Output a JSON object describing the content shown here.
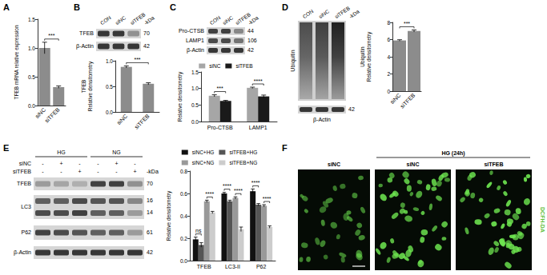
{
  "chart_data": [
    {
      "panel": "A",
      "type": "bar",
      "ylabel": "TFEB mRNA relative expression",
      "categories": [
        "siNC",
        "siTFEB"
      ],
      "values": [
        1.0,
        0.32
      ],
      "errors": [
        0.1,
        0.02
      ],
      "color": "#8c8c8c",
      "ylim": [
        0,
        1.5
      ],
      "yticks": [
        {
          "value": 0,
          "label": "0.0"
        },
        {
          "value": 0.5,
          "label": "0.5"
        },
        {
          "value": 1,
          "label": "1.0"
        },
        {
          "value": 1.5,
          "label": "1.5"
        }
      ],
      "grid": false,
      "annotations": [
        {
          "bars": [
            0,
            1
          ],
          "text": "***"
        }
      ]
    },
    {
      "type": "bar",
      "ylabel": "TFEB\nRelative densitometry",
      "categories": [
        "siNC",
        "siTFEB"
      ],
      "values": [
        0.88,
        0.55
      ],
      "errors": [
        0.02,
        0.02
      ],
      "color": "#8c8c8c",
      "ylim": [
        0,
        1
      ],
      "yticks": [
        {
          "value": 0,
          "label": "0.0"
        },
        {
          "value": 0.5,
          "label": "0.5"
        },
        {
          "value": 1,
          "label": "1.0"
        }
      ],
      "grid": false,
      "annotations": [
        {
          "bars": [
            0,
            1
          ],
          "text": "***"
        }
      ]
    },
    {
      "type": "bar",
      "ylabel": "Relative densitometry",
      "categories": [
        "Pro-CTSB",
        "LAMP1"
      ],
      "series": [
        {
          "name": "siNC",
          "color": "#a6a6a6",
          "values": [
            0.78,
            1.02
          ],
          "errors": [
            0.03,
            0.02
          ]
        },
        {
          "name": "siTFEB",
          "color": "#1a1a1a",
          "values": [
            0.62,
            0.76
          ],
          "errors": [
            0.02,
            0.04
          ]
        }
      ],
      "ylim": [
        0,
        1.5
      ],
      "yticks": [
        {
          "value": 0,
          "label": "0.0"
        },
        {
          "value": 0.5,
          "label": "0.5"
        },
        {
          "value": 1,
          "label": "1.0"
        },
        {
          "value": 1.5,
          "label": "1.5"
        }
      ],
      "grid": false,
      "legend": "top",
      "annotations": [
        {
          "category": "Pro-CTSB",
          "series": [
            0,
            1
          ],
          "text": "***"
        },
        {
          "category": "LAMP1",
          "series": [
            0,
            1
          ],
          "text": "****"
        }
      ]
    },
    {
      "type": "bar",
      "ylabel": "Ubiquitin\nRelative densitometry",
      "categories": [
        "siNC",
        "siTFEB"
      ],
      "values": [
        5.9,
        7.0
      ],
      "errors": [
        0.08,
        0.12
      ],
      "color": "#8c8c8c",
      "ylim": [
        0,
        8
      ],
      "yticks": [
        0,
        2,
        4,
        6,
        8
      ],
      "grid": false,
      "annotations": [
        {
          "bars": [
            0,
            1
          ],
          "text": "***"
        }
      ]
    },
    {
      "type": "bar",
      "ylabel": "Relative densitometry",
      "categories": [
        "TFEB",
        "LC3-II",
        "P62"
      ],
      "series": [
        {
          "name": "siNC+HG",
          "color": "#111111",
          "values": [
            0.19,
            0.6,
            0.62
          ],
          "errors": [
            0.02,
            0.01,
            0.02
          ]
        },
        {
          "name": "siTFEB+HG",
          "color": "#555555",
          "values": [
            0.14,
            0.53,
            0.5
          ],
          "errors": [
            0.02,
            0.01,
            0.01
          ]
        },
        {
          "name": "siNC+NG",
          "color": "#999999",
          "values": [
            0.53,
            0.56,
            0.49
          ],
          "errors": [
            0.01,
            0.01,
            0.01
          ]
        },
        {
          "name": "siTFEB+NG",
          "color": "#cccccc",
          "values": [
            0.43,
            0.28,
            0.3
          ],
          "errors": [
            0.01,
            0.02,
            0.01
          ]
        }
      ],
      "ylim": [
        0,
        0.8
      ],
      "yticks": [
        {
          "value": 0,
          "label": "0.0"
        },
        {
          "value": 0.2,
          "label": "0.2"
        },
        {
          "value": 0.4,
          "label": "0.4"
        },
        {
          "value": 0.6,
          "label": "0.6"
        },
        {
          "value": 0.8,
          "label": "0.8"
        }
      ],
      "grid": false,
      "legend": "top",
      "annotations": [
        {
          "category": "TFEB",
          "series": [
            0,
            1
          ],
          "text": "ns"
        },
        {
          "category": "TFEB",
          "series": [
            2,
            3
          ],
          "text": "****"
        },
        {
          "category": "LC3-II",
          "series": [
            0,
            1
          ],
          "text": "****"
        },
        {
          "category": "LC3-II",
          "series": [
            2,
            3
          ],
          "text": "****"
        },
        {
          "category": "P62",
          "series": [
            0,
            1
          ],
          "text": "****"
        },
        {
          "category": "P62",
          "series": [
            2,
            3
          ],
          "text": "****"
        }
      ]
    }
  ],
  "blots": [
    {
      "panel": "B",
      "lanes": [
        "CON",
        "siNC",
        "siTFEB"
      ],
      "unit": "-kDa",
      "rows": [
        {
          "name": "TFEB",
          "kda": 70
        },
        {
          "name": "β-Actin",
          "kda": 42
        }
      ]
    },
    {
      "panel": "C",
      "lanes": [
        "CON",
        "siNC",
        "siTFEB"
      ],
      "unit": "-kDa",
      "rows": [
        {
          "name": "Pro-CTSB",
          "kda": 44
        },
        {
          "name": "LAMP1",
          "kda": 106
        },
        {
          "name": "β-Actin",
          "kda": 42
        }
      ]
    },
    {
      "panel": "D",
      "lanes": [
        "CON",
        "siNC",
        "siTFEB"
      ],
      "unit": "-kDa",
      "rows": [
        {
          "name": "Ubiquitin"
        },
        {
          "name": "β-Actin",
          "kda": 42
        }
      ]
    },
    {
      "panel": "E",
      "groups": [
        {
          "label": "HG",
          "lanes": 3
        },
        {
          "label": "NG",
          "lanes": 3
        }
      ],
      "conditions": [
        {
          "name": "siNC",
          "marks": [
            "-",
            "+",
            "-",
            "-",
            "+",
            "-"
          ]
        },
        {
          "name": "siTFEB",
          "marks": [
            "-",
            "-",
            "+",
            "-",
            "-",
            "+"
          ]
        }
      ],
      "unit": "-kDa",
      "rows": [
        {
          "name": "TFEB",
          "kda": 70
        },
        {
          "name": "LC3",
          "kda": [
            16,
            14
          ]
        },
        {
          "name": "P62",
          "kda": 61
        },
        {
          "name": "β-Actin",
          "kda": 42
        }
      ]
    }
  ],
  "images": {
    "panel": "F",
    "columns": [
      "siNC",
      "siNC",
      "siTFEB"
    ],
    "header": {
      "text": "HG (24h)",
      "columns": [
        1,
        2
      ]
    },
    "stain": "DCFH-DA"
  }
}
